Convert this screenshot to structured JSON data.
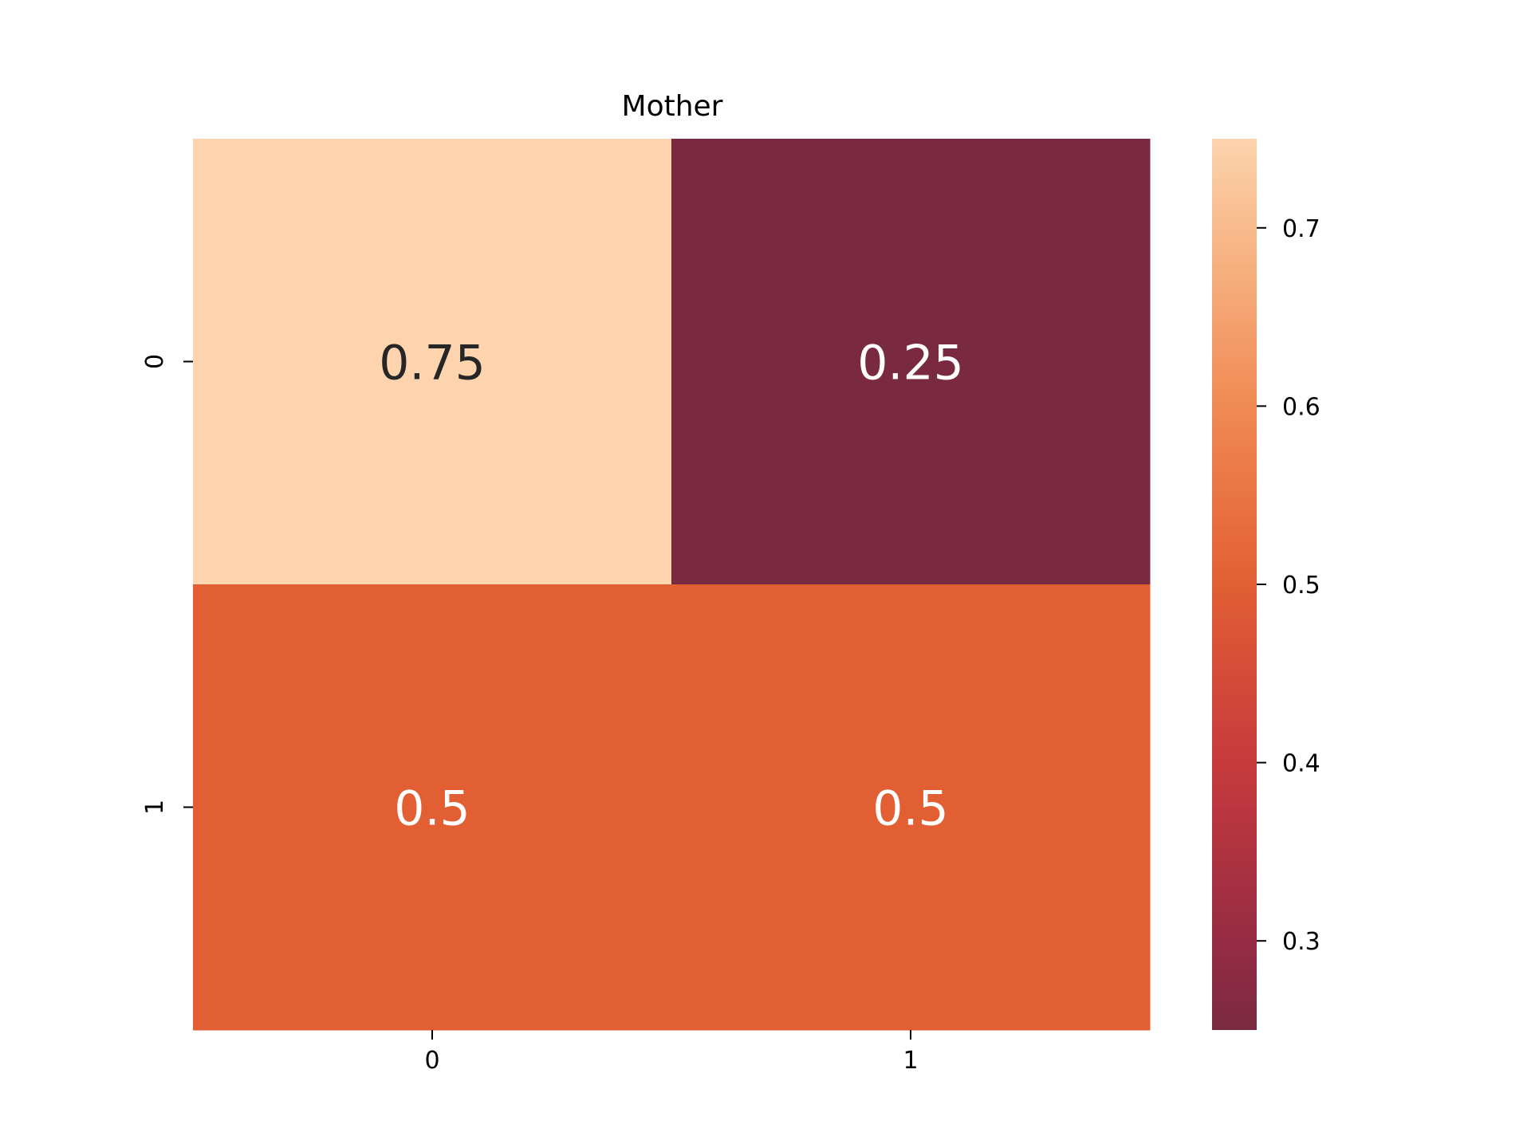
{
  "chart_data": {
    "type": "heatmap",
    "title": "Mother",
    "xlabel": "",
    "ylabel": "",
    "x_categories": [
      "0",
      "1"
    ],
    "y_categories": [
      "0",
      "1"
    ],
    "values": [
      [
        0.75,
        0.25
      ],
      [
        0.5,
        0.5
      ]
    ],
    "cell_labels": [
      [
        "0.75",
        "0.25"
      ],
      [
        "0.5",
        "0.5"
      ]
    ],
    "colormap": {
      "name": "rocket",
      "vmin": 0.25,
      "vmax": 0.75,
      "stops": [
        {
          "value": 0.25,
          "color": "#7a2a40"
        },
        {
          "value": 0.3,
          "color": "#962c44"
        },
        {
          "value": 0.4,
          "color": "#c73a3c"
        },
        {
          "value": 0.5,
          "color": "#e25f34"
        },
        {
          "value": 0.6,
          "color": "#f08a54"
        },
        {
          "value": 0.7,
          "color": "#f8bb8c"
        },
        {
          "value": 0.75,
          "color": "#fdd4ae"
        }
      ]
    },
    "colorbar_ticks": [
      "0.3",
      "0.4",
      "0.5",
      "0.6",
      "0.7"
    ],
    "label_colors": {
      "light": "#ffffff",
      "dark": "#262626"
    },
    "grid": false,
    "legend": "colorbar-right"
  }
}
